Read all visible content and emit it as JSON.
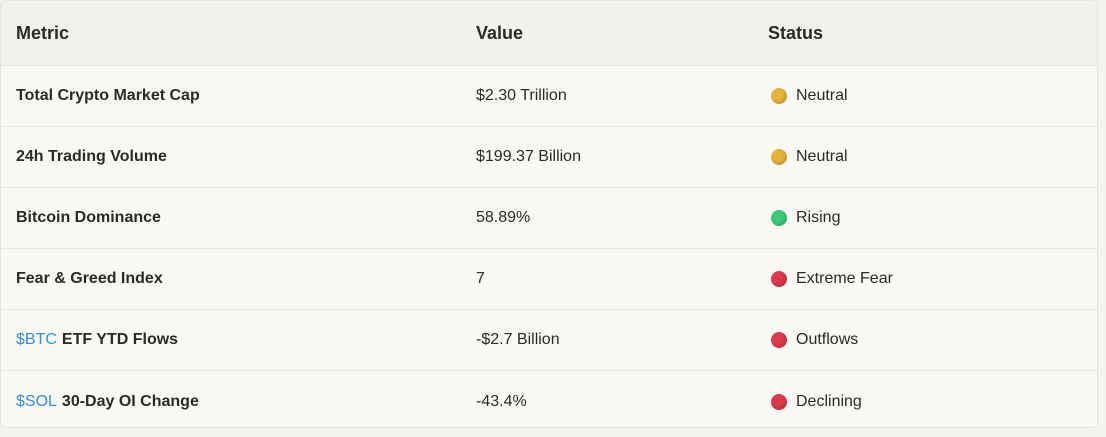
{
  "headers": {
    "metric": "Metric",
    "value": "Value",
    "status": "Status"
  },
  "colors": {
    "neutral": "#e5b53a",
    "rising": "#3cc97a",
    "negative": "#de3a4d",
    "ticker": "#2f8fe0"
  },
  "rows": [
    {
      "ticker": "",
      "metric": "Total Crypto Market Cap",
      "value": "$2.30 Trillion",
      "status": "Neutral",
      "dot": "neutral"
    },
    {
      "ticker": "",
      "metric": "24h Trading Volume",
      "value": "$199.37 Billion",
      "status": "Neutral",
      "dot": "neutral"
    },
    {
      "ticker": "",
      "metric": "Bitcoin Dominance",
      "value": "58.89%",
      "status": "Rising",
      "dot": "rising"
    },
    {
      "ticker": "",
      "metric": "Fear & Greed Index",
      "value": "7",
      "status": "Extreme Fear",
      "dot": "negative"
    },
    {
      "ticker": "$BTC",
      "metric": "ETF YTD Flows",
      "value": "-$2.7 Billion",
      "status": "Outflows",
      "dot": "negative"
    },
    {
      "ticker": "$SOL",
      "metric": "30-Day OI Change",
      "value": "-43.4%",
      "status": "Declining",
      "dot": "negative"
    }
  ]
}
